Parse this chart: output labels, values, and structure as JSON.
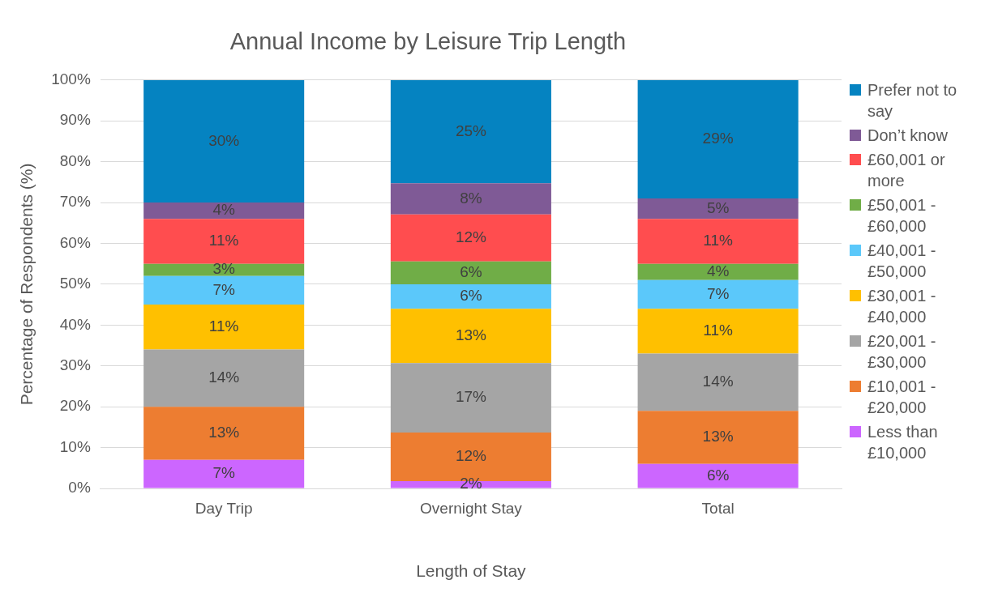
{
  "chart_data": {
    "type": "bar",
    "stacked": true,
    "title": "Annual Income by Leisure Trip Length",
    "xlabel": "Length of Stay",
    "ylabel": "Percentage of Respondents (%)",
    "categories": [
      "Day Trip",
      "Overnight Stay",
      "Total"
    ],
    "ylim": [
      0,
      100
    ],
    "yticks": [
      {
        "value": 0,
        "label": "0%"
      },
      {
        "value": 10,
        "label": "10%"
      },
      {
        "value": 20,
        "label": "20%"
      },
      {
        "value": 30,
        "label": "30%"
      },
      {
        "value": 40,
        "label": "40%"
      },
      {
        "value": 50,
        "label": "50%"
      },
      {
        "value": 60,
        "label": "60%"
      },
      {
        "value": 70,
        "label": "70%"
      },
      {
        "value": 80,
        "label": "80%"
      },
      {
        "value": 90,
        "label": "90%"
      },
      {
        "value": 100,
        "label": "100%"
      }
    ],
    "grid": "y",
    "legend": "right",
    "series": [
      {
        "name": "Less than £10,000",
        "color": "#cc66ff",
        "values": [
          7,
          1.8,
          6
        ],
        "value_labels": [
          "7%",
          "2%",
          "6%"
        ]
      },
      {
        "name": "£10,001 - £20,000",
        "color": "#ed7d31",
        "values": [
          13,
          11.9,
          13
        ],
        "value_labels": [
          "13%",
          "12%",
          "13%"
        ]
      },
      {
        "name": "£20,001 - £30,000",
        "color": "#a5a5a5",
        "values": [
          14,
          17,
          14
        ],
        "value_labels": [
          "14%",
          "17%",
          "14%"
        ]
      },
      {
        "name": "£30,001 - £40,000",
        "color": "#ffc000",
        "values": [
          11,
          13.3,
          11
        ],
        "value_labels": [
          "11%",
          "13%",
          "11%"
        ]
      },
      {
        "name": "£40,001 - £50,000",
        "color": "#5bc8fa",
        "values": [
          7,
          6,
          7
        ],
        "value_labels": [
          "7%",
          "6%",
          "7%"
        ]
      },
      {
        "name": "£50,001 - £60,000",
        "color": "#70ad47",
        "values": [
          3,
          5.6,
          4
        ],
        "value_labels": [
          "3%",
          "6%",
          "4%"
        ]
      },
      {
        "name": "£60,001 or more",
        "color": "#ff4d4f",
        "values": [
          11,
          11.5,
          11
        ],
        "value_labels": [
          "11%",
          "12%",
          "11%"
        ]
      },
      {
        "name": "Don’t know",
        "color": "#7f5a96",
        "values": [
          4,
          7.6,
          5
        ],
        "value_labels": [
          "4%",
          "8%",
          "5%"
        ]
      },
      {
        "name": "Prefer not to say",
        "color": "#0583c1",
        "values": [
          30,
          25.3,
          29
        ],
        "value_labels": [
          "30%",
          "25%",
          "29%"
        ]
      }
    ]
  }
}
